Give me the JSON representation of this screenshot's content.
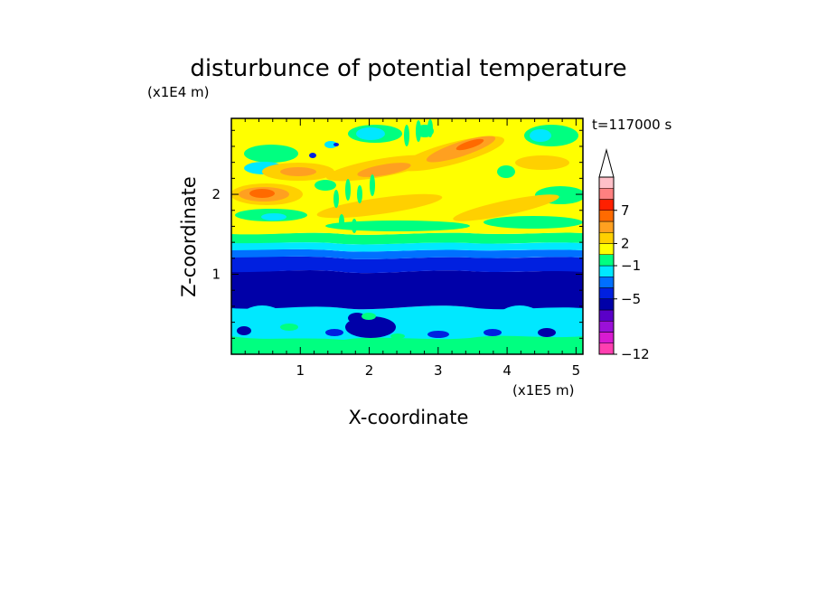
{
  "chart_data": {
    "type": "heatmap",
    "title": "disturbunce of potential temperature",
    "time_label": "t=117000 s",
    "xlabel": "X-coordinate",
    "ylabel": "Z-coordinate",
    "x_unit": "(x1E5 m)",
    "y_unit": "(x1E4 m)",
    "xlim": [
      0,
      5.1
    ],
    "ylim": [
      0,
      2.95
    ],
    "x_ticks": [
      "1",
      "2",
      "3",
      "4",
      "5"
    ],
    "y_ticks": [
      "1",
      "2"
    ],
    "colorbar": {
      "labels": [
        "7",
        "2",
        "−1",
        "−5",
        "−12"
      ],
      "levels": [
        {
          "color": "#ff3fb0"
        },
        {
          "color": "#d81bd0"
        },
        {
          "color": "#9b10d8"
        },
        {
          "color": "#5a00c8"
        },
        {
          "color": "#0000a8"
        },
        {
          "color": "#0020e0"
        },
        {
          "color": "#0070ff"
        },
        {
          "color": "#00e8ff"
        },
        {
          "color": "#00ff80"
        },
        {
          "color": "#ffff00"
        },
        {
          "color": "#ffd000"
        },
        {
          "color": "#ffa020"
        },
        {
          "color": "#ff6a00"
        },
        {
          "color": "#ff2000"
        },
        {
          "color": "#ff8080"
        },
        {
          "color": "#ffc0c8"
        }
      ]
    },
    "grid": false,
    "legend": "colorbar-right"
  }
}
